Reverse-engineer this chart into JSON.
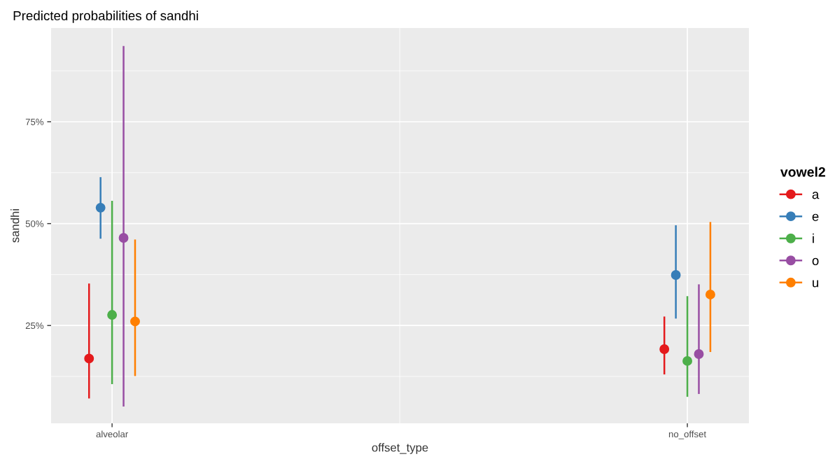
{
  "chart_data": {
    "type": "scatter",
    "title": "Predicted probabilities of sandhi",
    "xlabel": "offset_type",
    "ylabel": "sandhi",
    "legend_title": "vowel2",
    "categories": [
      "alveolar",
      "no_offset"
    ],
    "series": [
      {
        "name": "a",
        "color": "#e41a1c",
        "values": [
          16.9,
          19.2
        ],
        "errors": [
          [
            7.1,
            35.3
          ],
          [
            13.0,
            27.2
          ]
        ]
      },
      {
        "name": "e",
        "color": "#377eb8",
        "values": [
          53.9,
          37.4
        ],
        "errors": [
          [
            46.3,
            61.4
          ],
          [
            26.7,
            49.6
          ]
        ]
      },
      {
        "name": "i",
        "color": "#4daf4a",
        "values": [
          27.6,
          16.3
        ],
        "errors": [
          [
            10.6,
            55.6
          ],
          [
            7.5,
            32.2
          ]
        ]
      },
      {
        "name": "o",
        "color": "#984ea3",
        "values": [
          46.5,
          18.0
        ],
        "errors": [
          [
            5.1,
            93.6
          ],
          [
            8.2,
            35.1
          ]
        ]
      },
      {
        "name": "u",
        "color": "#ff7f00",
        "values": [
          26.0,
          32.6
        ],
        "errors": [
          [
            12.6,
            46.1
          ],
          [
            18.5,
            50.4
          ]
        ]
      }
    ],
    "ylim": [
      1,
      98
    ],
    "yticks": [
      {
        "value": 25,
        "label": "25%"
      },
      {
        "value": 50,
        "label": "50%"
      },
      {
        "value": 75,
        "label": "75%"
      }
    ],
    "grid": true,
    "legend": "right",
    "marker": "circle"
  }
}
